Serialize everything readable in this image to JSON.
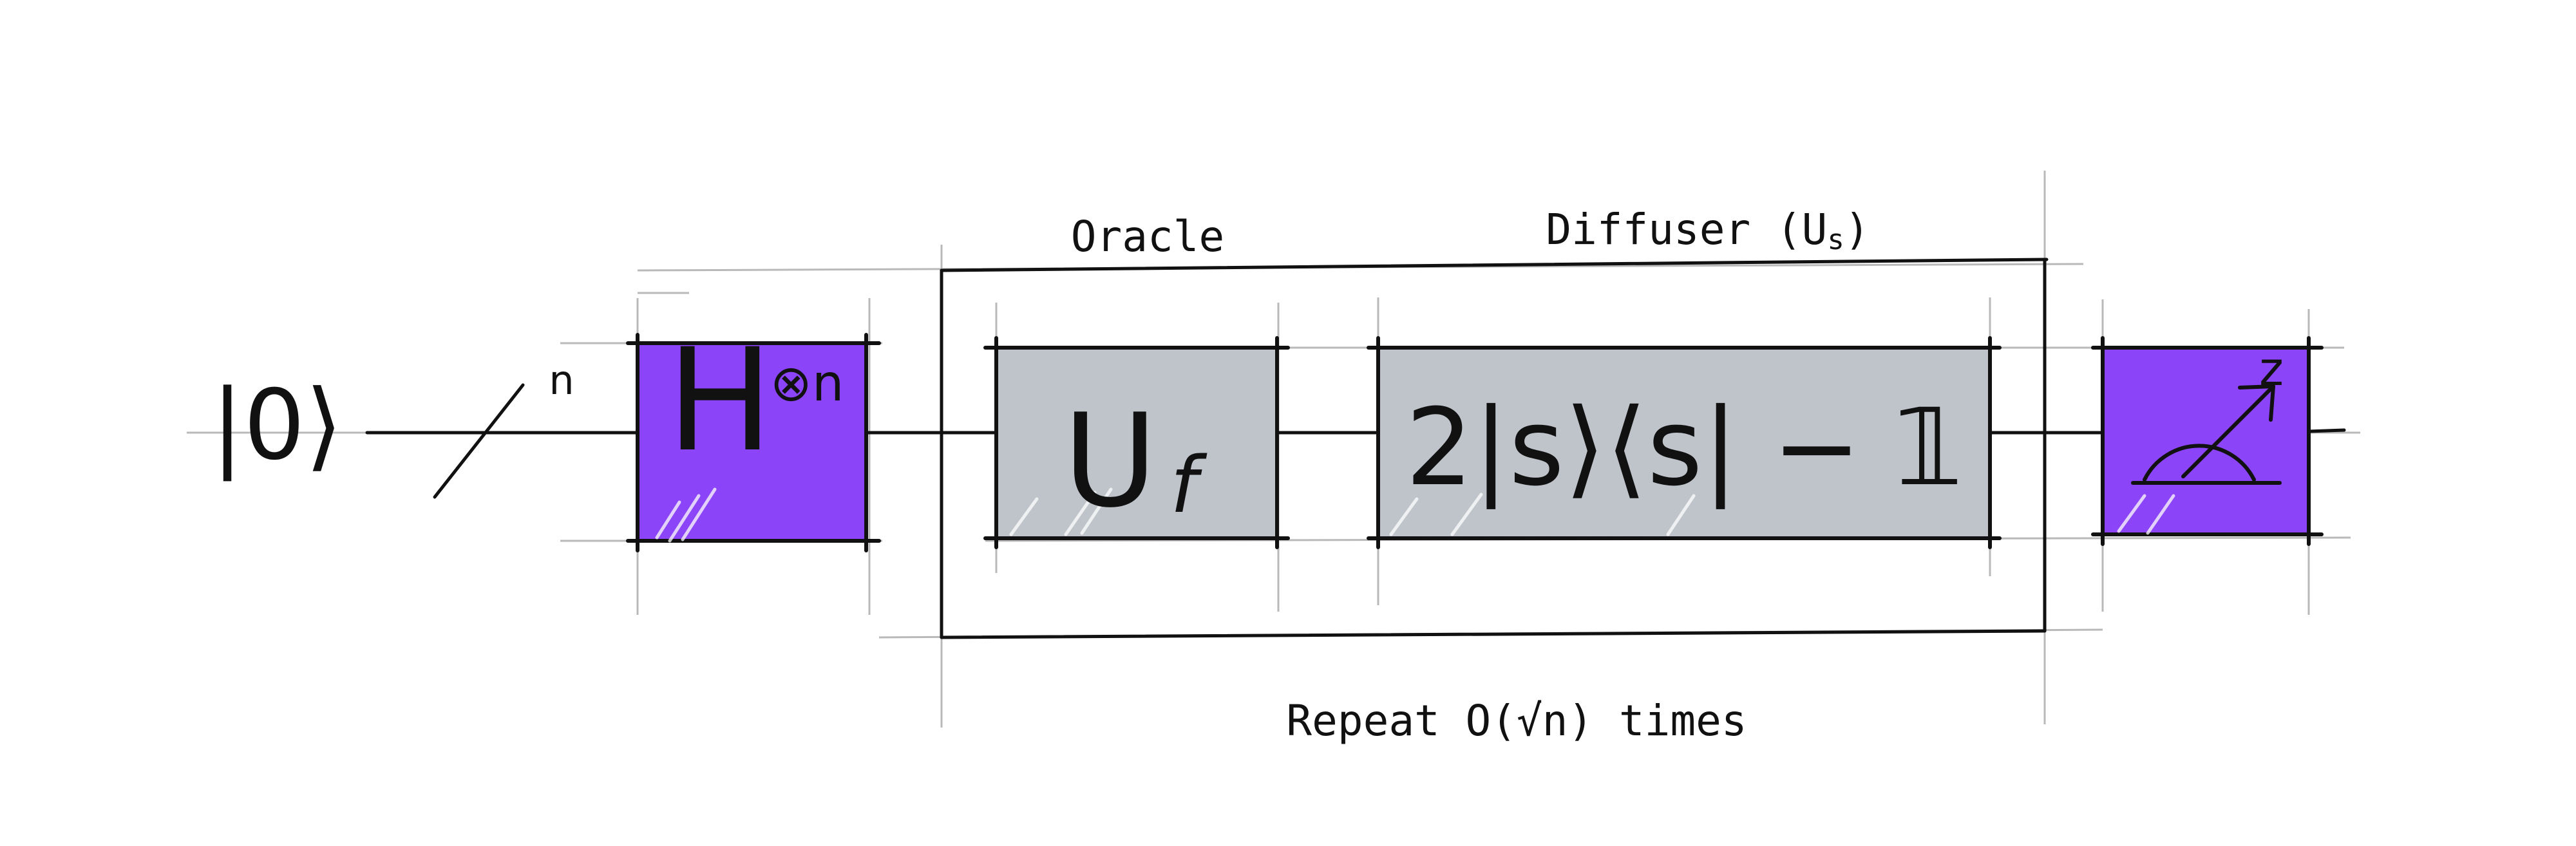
{
  "colors": {
    "gate_purple": "#8b44f7",
    "gate_gray": "#bfc4cb",
    "ink": "#111111",
    "guide": "#b9b9b9"
  },
  "input": {
    "ket_symbol": "|0⟩",
    "register_size": "n"
  },
  "hadamard": {
    "label": "H",
    "superscript": "⊗n"
  },
  "loop": {
    "oracle_label": "Oracle",
    "diffuser_label": "Diffuser (U",
    "diffuser_subscript": "s",
    "diffuser_close": ")",
    "repeat_label": "Repeat O(√n) times"
  },
  "oracle_gate": {
    "symbol": "U",
    "subscript": "f"
  },
  "diffuser_gate": {
    "expression": "2|s⟩⟨s| − 𝟙"
  },
  "measurement": {
    "basis_label": "z",
    "icon": "meter-icon"
  }
}
